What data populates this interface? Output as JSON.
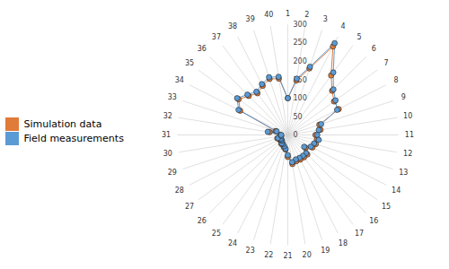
{
  "chart_data": {
    "type": "radar",
    "categories": [
      "1",
      "2",
      "3",
      "4",
      "5",
      "6",
      "7",
      "8",
      "9",
      "10",
      "11",
      "12",
      "13",
      "14",
      "15",
      "16",
      "17",
      "18",
      "19",
      "20",
      "21",
      "22",
      "23",
      "24",
      "25",
      "26",
      "27",
      "28",
      "29",
      "30",
      "31",
      "32",
      "33",
      "34",
      "35",
      "36",
      "37",
      "38",
      "39",
      "40"
    ],
    "series": [
      {
        "name": "Simulation data",
        "color": "#E07B39",
        "marker": "circle",
        "values": [
          100,
          150,
          190,
          270,
          200,
          170,
          155,
          155,
          90,
          90,
          75,
          80,
          80,
          75,
          60,
          75,
          75,
          75,
          75,
          80,
          60,
          40,
          35,
          30,
          30,
          25,
          25,
          25,
          30,
          20,
          20,
          50,
          35,
          145,
          165,
          150,
          140,
          150,
          160,
          155
        ]
      },
      {
        "name": "Field measurements",
        "color": "#5B9BD5",
        "marker": "circle",
        "values": [
          100,
          155,
          195,
          280,
          210,
          175,
          160,
          150,
          95,
          85,
          80,
          85,
          75,
          70,
          55,
          70,
          70,
          70,
          70,
          75,
          55,
          38,
          32,
          28,
          28,
          22,
          22,
          22,
          28,
          18,
          18,
          55,
          32,
          150,
          170,
          155,
          145,
          155,
          165,
          160
        ]
      }
    ],
    "ylim": [
      0,
      300
    ],
    "yticks": [
      0,
      50,
      100,
      150,
      200,
      250,
      300
    ],
    "grid": true,
    "legend": "left"
  }
}
